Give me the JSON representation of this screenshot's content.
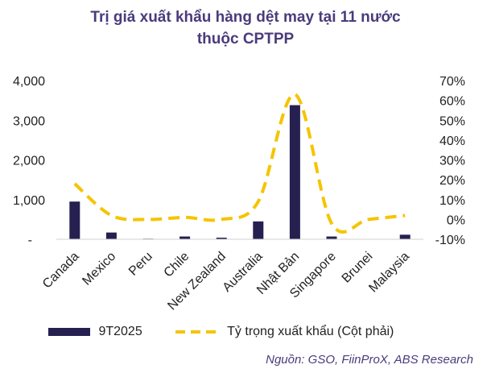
{
  "title_line1": "Trị giá xuất khẩu hàng dệt may tại 11 nước",
  "title_line2": "thuộc CPTPP",
  "source": "Nguồn: GSO, FiinProX, ABS Research",
  "colors": {
    "bar": "#25204f",
    "line": "#f5c400",
    "title": "#4a3b7c"
  },
  "chart_data": {
    "type": "bar",
    "categories": [
      "Canada",
      "Mexico",
      "Peru",
      "Chile",
      "New Zealand",
      "Australia",
      "Nhật Bản",
      "Singapore",
      "Brunei",
      "Malaysia"
    ],
    "series": [
      {
        "name": "9T2025",
        "type": "bar",
        "axis": "left",
        "values": [
          950,
          170,
          15,
          70,
          40,
          450,
          3380,
          70,
          5,
          115
        ]
      },
      {
        "name": "Tỷ trọng xuất khẩu (Cột phải)",
        "type": "line",
        "axis": "right",
        "style": "dashed",
        "values": [
          18,
          2,
          0,
          1,
          0,
          9,
          63,
          -2,
          0,
          2
        ]
      }
    ],
    "y_left": {
      "min": 0,
      "max": 4000,
      "ticks": [
        "-",
        "1,000",
        "2,000",
        "3,000",
        "4,000"
      ]
    },
    "y_right": {
      "min": -10,
      "max": 70,
      "ticks": [
        "-10%",
        "0%",
        "10%",
        "20%",
        "30%",
        "40%",
        "50%",
        "60%",
        "70%"
      ]
    },
    "legend_position": "bottom",
    "grid": false
  }
}
